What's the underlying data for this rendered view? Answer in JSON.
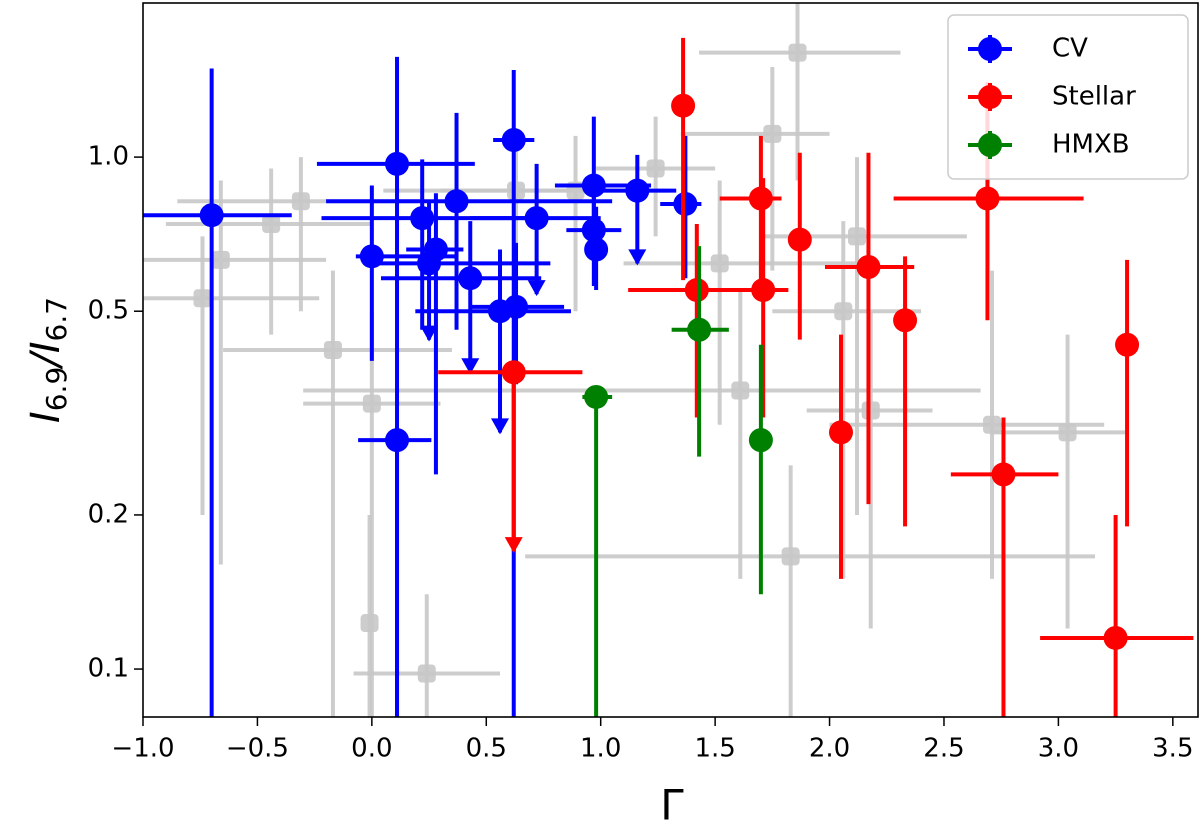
{
  "chart_data": {
    "type": "errorbar",
    "xlabel": "Γ",
    "ylabel": [
      "I",
      "6.9",
      "/I",
      "6.7"
    ],
    "xlim": [
      -1.0,
      3.61
    ],
    "ylim": [
      0.0806,
      2.0
    ],
    "log_y": true,
    "xticks": [
      {
        "value": -1.0,
        "label": "−1.0"
      },
      {
        "value": -0.5,
        "label": "−0.5"
      },
      {
        "value": 0.0,
        "label": "0.0"
      },
      {
        "value": 0.5,
        "label": "0.5"
      },
      {
        "value": 1.0,
        "label": "1.0"
      },
      {
        "value": 1.5,
        "label": "1.5"
      },
      {
        "value": 2.0,
        "label": "2.0"
      },
      {
        "value": 2.5,
        "label": "2.5"
      },
      {
        "value": 3.0,
        "label": "3.0"
      },
      {
        "value": 3.5,
        "label": "3.5"
      }
    ],
    "yticks": [
      0.1,
      0.2,
      0.5,
      {
        "value": 1.0,
        "label": "1.0"
      }
    ],
    "legend": "upper right",
    "series": [
      {
        "name": "CV",
        "color": "#0000ff",
        "x": [
          -0.7,
          0.11,
          0.0,
          0.22,
          0.25,
          0.28,
          0.37,
          0.43,
          0.56,
          0.63,
          0.62,
          0.72,
          0.97,
          0.97,
          0.98,
          1.16,
          1.37,
          0.11
        ],
        "values": [
          0.77,
          0.97,
          0.64,
          0.76,
          0.62,
          0.66,
          0.82,
          0.58,
          0.5,
          0.51,
          1.08,
          0.76,
          0.88,
          0.72,
          0.66,
          0.86,
          0.81,
          0.28
        ],
        "x_lo": [
          -1.0,
          -0.24,
          -0.07,
          -0.22,
          -0.01,
          0.15,
          -0.2,
          0.04,
          0.19,
          0.43,
          0.53,
          0.43,
          0.8,
          0.85,
          null,
          1.0,
          1.26,
          -0.06
        ],
        "x_hi": [
          -0.35,
          0.45,
          0.37,
          0.71,
          0.78,
          0.4,
          1.05,
          0.74,
          0.87,
          0.84,
          0.71,
          1.0,
          1.22,
          1.09,
          null,
          1.33,
          1.44,
          0.26
        ],
        "y_lo": [
          0.07,
          0.07,
          0.4,
          0.46,
          0.44,
          0.24,
          0.46,
          0.38,
          0.29,
          0.36,
          0.07,
          0.54,
          0.64,
          0.56,
          0.55,
          0.62,
          0.58,
          0.07
        ],
        "y_hi": [
          1.49,
          1.57,
          0.88,
          0.99,
          0.82,
          0.85,
          1.22,
          0.75,
          0.66,
          0.68,
          1.48,
          0.97,
          1.2,
          0.91,
          0.8,
          1.01,
          1.1,
          null
        ],
        "upper_limit": [
          false,
          false,
          false,
          false,
          true,
          false,
          false,
          true,
          true,
          false,
          false,
          true,
          false,
          false,
          false,
          true,
          false,
          false
        ]
      },
      {
        "name": "Stellar",
        "color": "#ff0000",
        "x": [
          1.36,
          1.42,
          1.71,
          1.7,
          1.87,
          2.17,
          2.33,
          2.69,
          2.05,
          2.76,
          3.3,
          3.25,
          0.62
        ],
        "values": [
          1.26,
          0.55,
          0.55,
          0.83,
          0.69,
          0.61,
          0.48,
          0.83,
          0.29,
          0.24,
          0.43,
          0.115,
          0.38
        ],
        "x_lo": [
          null,
          1.12,
          1.43,
          1.52,
          null,
          1.98,
          null,
          2.28,
          null,
          2.53,
          null,
          2.92,
          0.29
        ],
        "x_hi": [
          null,
          1.74,
          1.82,
          1.79,
          null,
          2.37,
          null,
          3.11,
          null,
          3.0,
          null,
          3.59,
          0.92
        ],
        "y_lo": [
          0.575,
          0.31,
          0.31,
          0.55,
          0.44,
          0.21,
          0.19,
          0.48,
          0.15,
          0.07,
          0.19,
          0.07,
          0.17
        ],
        "y_hi": [
          1.71,
          0.74,
          0.91,
          1.1,
          1.02,
          1.02,
          0.64,
          1.4,
          0.45,
          0.31,
          0.63,
          0.2,
          0.38
        ],
        "upper_limit": [
          false,
          false,
          false,
          false,
          false,
          false,
          false,
          false,
          false,
          false,
          false,
          false,
          true
        ]
      },
      {
        "name": "HMXB",
        "color": "#008000",
        "x": [
          0.98,
          1.43,
          1.7
        ],
        "values": [
          0.34,
          0.46,
          0.28
        ],
        "x_lo": [
          0.92,
          1.31,
          null
        ],
        "x_hi": [
          1.05,
          1.56,
          null
        ],
        "y_lo": [
          0.07,
          0.26,
          0.14
        ],
        "y_hi": [
          0.34,
          0.67,
          0.43
        ],
        "upper_limit": [
          false,
          false,
          false
        ]
      },
      {
        "color": "#c8c8c8",
        "x": [
          1.86,
          1.75,
          1.24,
          -0.31,
          -0.44,
          -0.66,
          -0.74,
          -0.17,
          0.0,
          0.24,
          1.83,
          1.61,
          2.06,
          2.12,
          2.18,
          2.71,
          3.04,
          0.63,
          0.89,
          1.52,
          -0.01
        ],
        "values": [
          1.6,
          1.11,
          0.95,
          0.82,
          0.74,
          0.63,
          0.53,
          0.42,
          0.33,
          0.098,
          0.166,
          0.35,
          0.5,
          0.7,
          0.32,
          0.3,
          0.29,
          0.86,
          0.86,
          0.62,
          0.123
        ],
        "x_lo": [
          1.43,
          1.35,
          0.98,
          -0.85,
          -0.9,
          -1.0,
          -1.0,
          -0.65,
          -0.3,
          -0.08,
          0.67,
          -0.3,
          1.75,
          1.7,
          1.9,
          2.0,
          2.7,
          0.05,
          0.3,
          1.1,
          null
        ],
        "x_hi": [
          2.31,
          2.0,
          1.5,
          0.2,
          0.0,
          -0.2,
          -0.23,
          0.35,
          0.3,
          0.56,
          3.16,
          2.66,
          2.4,
          2.6,
          2.45,
          3.2,
          3.3,
          1.2,
          1.3,
          2.2,
          null
        ],
        "y_lo": [
          0.9,
          0.6,
          0.7,
          0.5,
          0.45,
          0.16,
          0.2,
          0.08,
          0.08,
          0.08,
          0.07,
          0.15,
          0.15,
          0.2,
          0.12,
          0.15,
          0.12,
          0.5,
          0.5,
          0.3,
          0.08
        ],
        "y_hi": [
          2.2,
          1.5,
          1.2,
          1.0,
          0.95,
          0.9,
          0.7,
          0.6,
          0.5,
          0.14,
          0.25,
          0.55,
          0.75,
          1.0,
          0.5,
          0.6,
          0.45,
          1.1,
          1.1,
          0.9,
          0.2
        ],
        "upper_limit": [
          false,
          false,
          false,
          false,
          false,
          false,
          false,
          false,
          false,
          false,
          false,
          false,
          false,
          false,
          false,
          false,
          false,
          false,
          false,
          false,
          false
        ]
      }
    ]
  }
}
